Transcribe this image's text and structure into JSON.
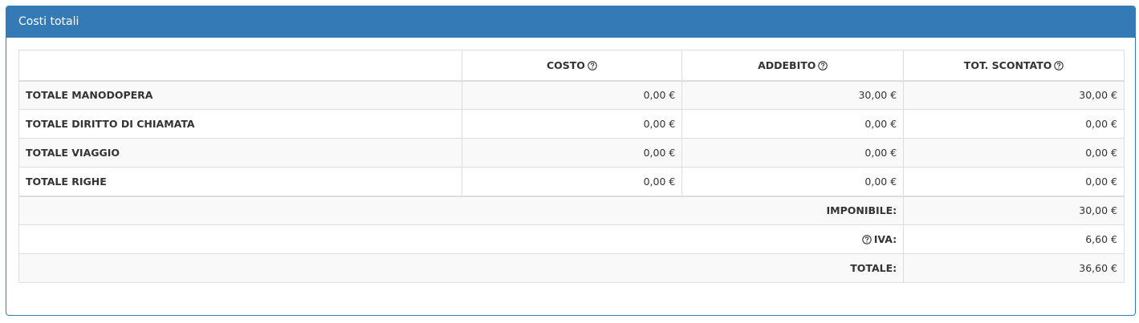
{
  "panel": {
    "title": "Costi totali"
  },
  "table": {
    "headers": [
      "COSTO",
      "ADDEBITO",
      "TOT. SCONTATO"
    ],
    "rows": [
      {
        "label": "TOTALE MANODOPERA",
        "values": [
          "0,00 €",
          "30,00 €",
          "30,00 €"
        ]
      },
      {
        "label": "TOTALE DIRITTO DI CHIAMATA",
        "values": [
          "0,00 €",
          "0,00 €",
          "0,00 €"
        ]
      },
      {
        "label": "TOTALE VIAGGIO",
        "values": [
          "0,00 €",
          "0,00 €",
          "0,00 €"
        ]
      },
      {
        "label": "TOTALE RIGHE",
        "values": [
          "0,00 €",
          "0,00 €",
          "0,00 €"
        ]
      }
    ],
    "summary": [
      {
        "label": "IMPONIBILE:",
        "value": "30,00 €"
      },
      {
        "label": "IVA:",
        "value": "6,60 €"
      },
      {
        "label": "TOTALE:",
        "value": "36,60 €"
      }
    ]
  }
}
